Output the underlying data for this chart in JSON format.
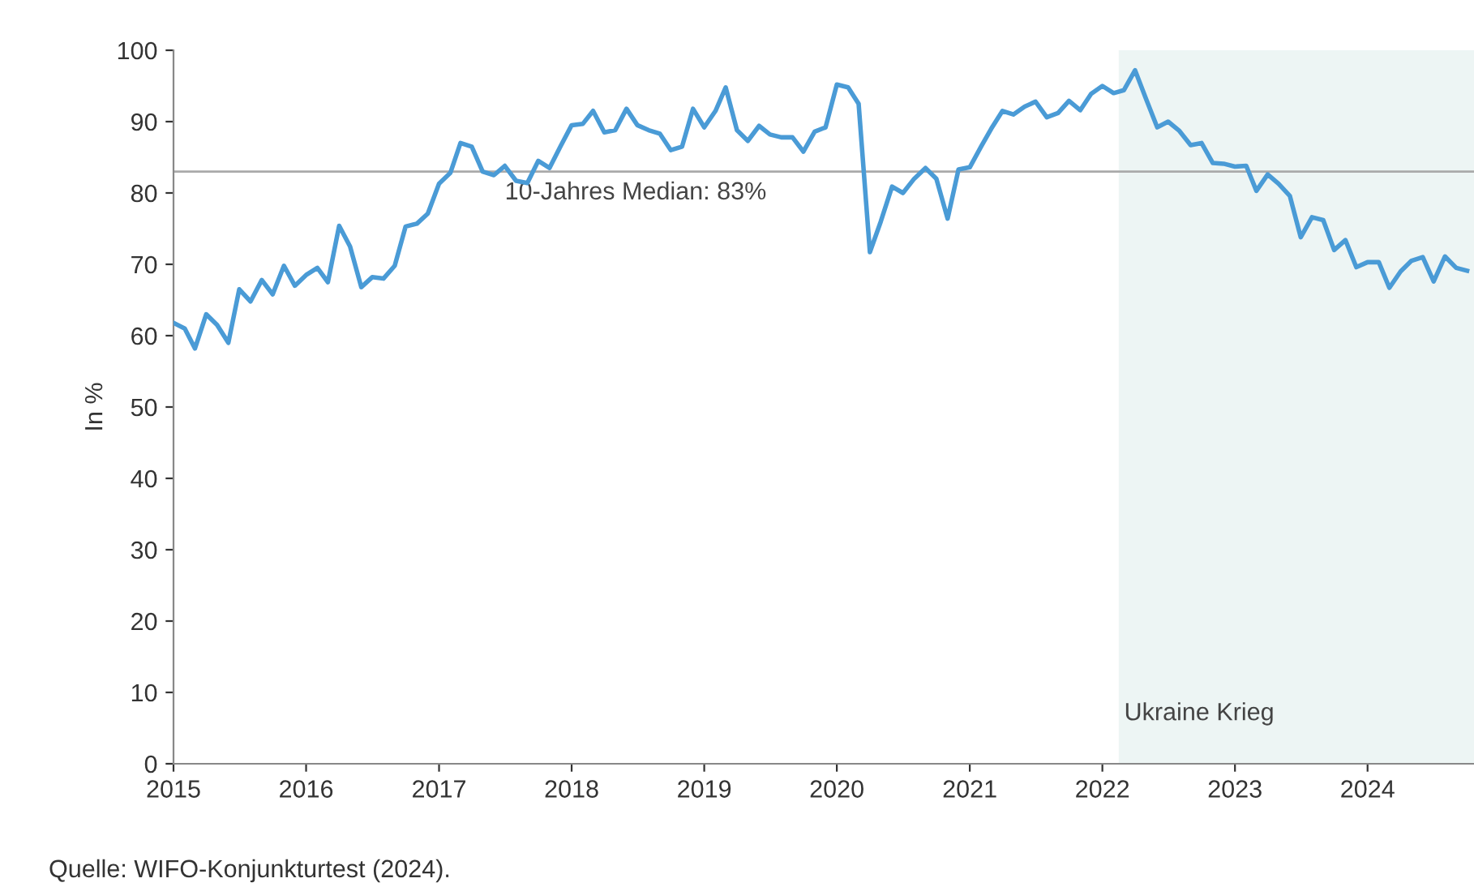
{
  "chart_data": {
    "type": "line",
    "ylabel": "In %",
    "series": [
      {
        "color": "#4a9bd6",
        "x": [
          "2015-01",
          "2015-02",
          "2015-03",
          "2015-04",
          "2015-05",
          "2015-06",
          "2015-07",
          "2015-08",
          "2015-09",
          "2015-10",
          "2015-11",
          "2015-12",
          "2016-01",
          "2016-02",
          "2016-03",
          "2016-04",
          "2016-05",
          "2016-06",
          "2016-07",
          "2016-08",
          "2016-09",
          "2016-10",
          "2016-11",
          "2016-12",
          "2017-01",
          "2017-02",
          "2017-03",
          "2017-04",
          "2017-05",
          "2017-06",
          "2017-07",
          "2017-08",
          "2017-09",
          "2017-10",
          "2017-11",
          "2017-12",
          "2018-01",
          "2018-02",
          "2018-03",
          "2018-04",
          "2018-05",
          "2018-06",
          "2018-07",
          "2018-08",
          "2018-09",
          "2018-10",
          "2018-11",
          "2018-12",
          "2019-01",
          "2019-02",
          "2019-03",
          "2019-04",
          "2019-05",
          "2019-06",
          "2019-07",
          "2019-08",
          "2019-09",
          "2019-10",
          "2019-11",
          "2019-12",
          "2020-01",
          "2020-02",
          "2020-03",
          "2020-04",
          "2020-05",
          "2020-06",
          "2020-07",
          "2020-08",
          "2020-09",
          "2020-10",
          "2020-11",
          "2020-12",
          "2021-01",
          "2021-02",
          "2021-03",
          "2021-04",
          "2021-05",
          "2021-06",
          "2021-07",
          "2021-08",
          "2021-09",
          "2021-10",
          "2021-11",
          "2021-12",
          "2022-01",
          "2022-02",
          "2022-03",
          "2022-04",
          "2022-05",
          "2022-06",
          "2022-07",
          "2022-08",
          "2022-09",
          "2022-10",
          "2022-11",
          "2022-12",
          "2023-01",
          "2023-02",
          "2023-03",
          "2023-04",
          "2023-05",
          "2023-06",
          "2023-07",
          "2023-08",
          "2023-09",
          "2023-10",
          "2023-11",
          "2023-12",
          "2024-01",
          "2024-02",
          "2024-03",
          "2024-04",
          "2024-05",
          "2024-06",
          "2024-07",
          "2024-08",
          "2024-09",
          "2024-10"
        ],
        "values": [
          61.8,
          61,
          58.2,
          63,
          61.5,
          59,
          66.5,
          64.8,
          67.8,
          65.8,
          69.8,
          67,
          68.5,
          69.5,
          67.5,
          75.4,
          72.5,
          66.8,
          68.2,
          68,
          69.8,
          75.3,
          75.7,
          77.1,
          81.3,
          82.8,
          87,
          86.5,
          83,
          82.5,
          83.8,
          81.7,
          81.4,
          84.5,
          83.5,
          86.5,
          89.5,
          89.7,
          91.5,
          88.5,
          88.8,
          91.8,
          89.5,
          88.8,
          88.3,
          86,
          86.5,
          91.8,
          89.2,
          91.5,
          94.8,
          88.8,
          87.3,
          89.4,
          88.2,
          87.8,
          87.8,
          85.8,
          88.6,
          89.2,
          95.2,
          94.8,
          92.5,
          71.7,
          76,
          80.9,
          80,
          82,
          83.5,
          82,
          76.4,
          83.3,
          83.6,
          86.5,
          89,
          91.5,
          91,
          92.1,
          92.8,
          90.6,
          91.2,
          92.9,
          91.6,
          93.9,
          95,
          94,
          94.4,
          97.2,
          93.2,
          89.2,
          90,
          88.7,
          86.7,
          87,
          84.2,
          84.1,
          83.7,
          83.8,
          80.3,
          82.6,
          81.3,
          79.6,
          73.8,
          76.6,
          76.2,
          72,
          73.4,
          69.6,
          70.3,
          70.3,
          66.7,
          69,
          70.5,
          71,
          67.6,
          71.1,
          69.5,
          69.1
        ]
      }
    ],
    "xlim": [
      "2015-01-01",
      "2024-10-20"
    ],
    "xticks": [
      "2015",
      "2016",
      "2017",
      "2018",
      "2019",
      "2020",
      "2021",
      "2022",
      "2023",
      "2024"
    ],
    "ylim": [
      0,
      100
    ],
    "yticks": [
      0,
      10,
      20,
      30,
      40,
      50,
      60,
      70,
      80,
      90,
      100
    ],
    "ref_lines": [
      {
        "axis": "y",
        "value": 83,
        "label": "10-Jahres Median: 83%",
        "color": "#aaaaaa"
      }
    ],
    "bands": [
      {
        "axis": "x",
        "from": "2022-02-15",
        "to": "2024-10-20",
        "label": "Ukraine Krieg",
        "color": "#edf5f4"
      }
    ],
    "annotations": [
      "Quelle: WIFO-Konjunkturtest (2024)."
    ],
    "grid": false,
    "legend": false,
    "marker": "none",
    "line_style": "solid"
  }
}
